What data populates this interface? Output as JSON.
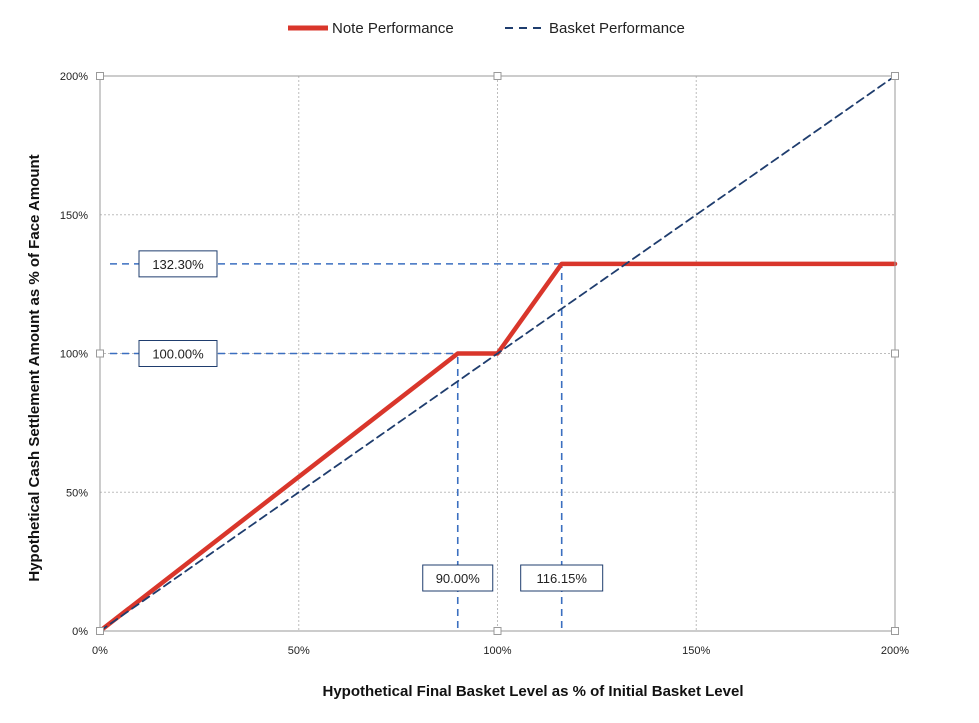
{
  "chart_data": {
    "type": "line",
    "title": "",
    "xlabel": "Hypothetical Final Basket Level as % of Initial Basket Level",
    "ylabel": "Hypothetical Cash Settlement Amount as % of Face Amount",
    "xlim": [
      0,
      200
    ],
    "ylim": [
      0,
      200
    ],
    "x_ticks": [
      0,
      50,
      100,
      150,
      200
    ],
    "y_ticks": [
      0,
      50,
      100,
      150,
      200
    ],
    "x_tick_labels": [
      "0%",
      "50%",
      "100%",
      "150%",
      "200%"
    ],
    "y_tick_labels": [
      "0%",
      "50%",
      "100%",
      "150%",
      "200%"
    ],
    "grid": true,
    "legend_position": "top-center",
    "series": [
      {
        "name": "Note Performance",
        "color": "#d9362b",
        "style": "solid",
        "points": [
          [
            0,
            0
          ],
          [
            90,
            100
          ],
          [
            100,
            100
          ],
          [
            116.15,
            132.3
          ],
          [
            200,
            132.3
          ]
        ]
      },
      {
        "name": "Basket Performance",
        "color": "#1f3d6e",
        "style": "dashed",
        "points": [
          [
            0,
            0
          ],
          [
            200,
            200
          ]
        ]
      }
    ],
    "annotations": [
      {
        "label": "132.30%",
        "axis": "y",
        "value": 132.3,
        "line_to_x": 116.15
      },
      {
        "label": "100.00%",
        "axis": "y",
        "value": 100,
        "line_to_x": 90
      },
      {
        "label": "90.00%",
        "axis": "x",
        "value": 90,
        "line_to_y": 100
      },
      {
        "label": "116.15%",
        "axis": "x",
        "value": 116.15,
        "line_to_y": 132.3
      }
    ],
    "reference_line_color": "#3b6fc0",
    "grid_color": "#bdbdbd"
  }
}
